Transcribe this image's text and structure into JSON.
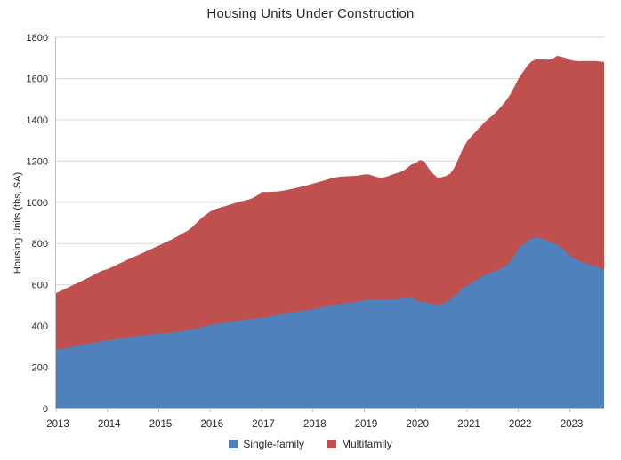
{
  "chart_data": {
    "type": "area",
    "stacked": true,
    "title": "Housing Units Under Construction",
    "ylabel": "Housing Units (ths, SA)",
    "xlabel": "",
    "x_tick_labels": [
      "2013",
      "2014",
      "2015",
      "2016",
      "2017",
      "2018",
      "2019",
      "2020",
      "2021",
      "2022",
      "2023"
    ],
    "points_per_tick": 12,
    "y_ticks": [
      0,
      200,
      400,
      600,
      800,
      1000,
      1200,
      1400,
      1600,
      1800
    ],
    "ylim": [
      0,
      1800
    ],
    "grid": "horizontal",
    "legend_position": "bottom",
    "colors": {
      "grid": "#D9D9D9",
      "axis": "#BFBFBF",
      "text": "#262626"
    },
    "series": [
      {
        "name": "Single-family",
        "color": "#4F81BD",
        "values": [
          285,
          288,
          292,
          296,
          300,
          304,
          308,
          312,
          316,
          320,
          324,
          328,
          331,
          333,
          336,
          339,
          342,
          345,
          348,
          351,
          354,
          357,
          359,
          361,
          362,
          364,
          366,
          368,
          371,
          374,
          377,
          380,
          384,
          389,
          394,
          400,
          405,
          409,
          412,
          415,
          418,
          421,
          424,
          427,
          430,
          433,
          436,
          438,
          440,
          443,
          447,
          451,
          455,
          459,
          463,
          466,
          469,
          472,
          475,
          478,
          482,
          486,
          490,
          494,
          498,
          502,
          505,
          508,
          511,
          514,
          517,
          521,
          525,
          527,
          529,
          528,
          527,
          527,
          528,
          530,
          532,
          534,
          536,
          538,
          525,
          520,
          516,
          510,
          505,
          500,
          505,
          515,
          528,
          542,
          562,
          585,
          595,
          610,
          622,
          634,
          646,
          655,
          662,
          670,
          680,
          692,
          710,
          740,
          775,
          795,
          812,
          824,
          830,
          827,
          820,
          812,
          803,
          795,
          780,
          760,
          740,
          728,
          718,
          710,
          700,
          695,
          690,
          682,
          672
        ]
      },
      {
        "name": "Multifamily",
        "color": "#C0504D",
        "values": [
          275,
          281,
          287,
          293,
          299,
          305,
          311,
          317,
          323,
          330,
          337,
          342,
          345,
          352,
          359,
          366,
          373,
          380,
          386,
          392,
          398,
          405,
          412,
          420,
          428,
          436,
          444,
          452,
          460,
          468,
          477,
          486,
          500,
          515,
          530,
          540,
          550,
          556,
          560,
          563,
          566,
          570,
          573,
          576,
          578,
          580,
          585,
          595,
          610,
          607,
          603,
          600,
          598,
          597,
          597,
          598,
          600,
          602,
          604,
          606,
          608,
          610,
          612,
          614,
          616,
          618,
          618,
          617,
          615,
          613,
          611,
          610,
          610,
          608,
          600,
          594,
          592,
          596,
          602,
          608,
          612,
          618,
          630,
          645,
          665,
          685,
          684,
          655,
          635,
          620,
          616,
          612,
          610,
          625,
          650,
          675,
          700,
          710,
          720,
          730,
          740,
          750,
          760,
          772,
          785,
          798,
          810,
          818,
          825,
          835,
          848,
          858,
          862,
          866,
          872,
          880,
          892,
          915,
          925,
          940,
          950,
          958,
          966,
          975,
          985,
          990,
          995,
          1000,
          1008
        ]
      }
    ]
  }
}
